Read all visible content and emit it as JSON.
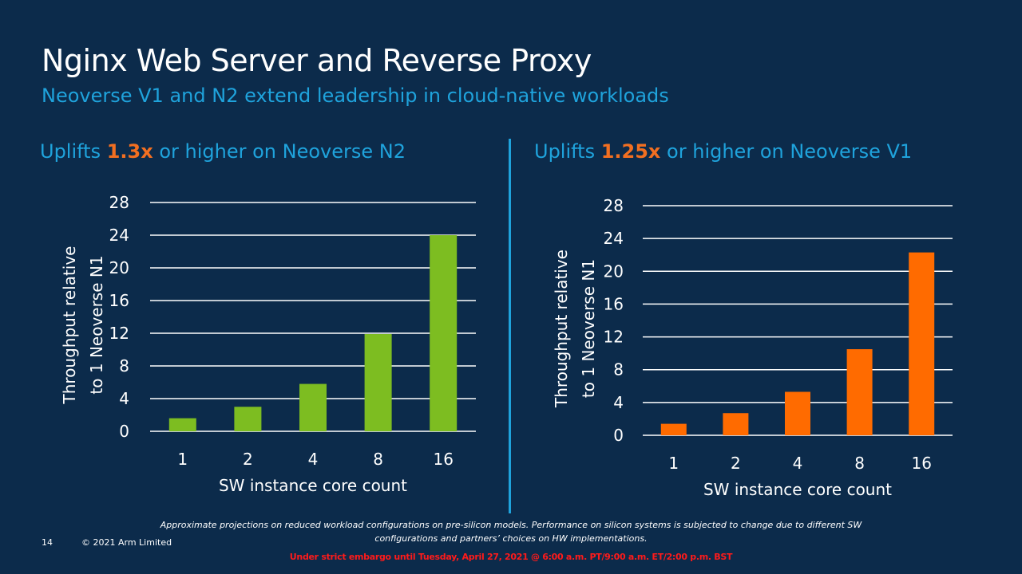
{
  "title": "Nginx Web Server and Reverse Proxy",
  "subtitle": "Neoverse V1 and N2 extend leadership in cloud-native workloads",
  "panels": [
    {
      "heading_pre": "Uplifts ",
      "heading_value": "1.3x",
      "heading_post": " or higher on Neoverse N2"
    },
    {
      "heading_pre": "Uplifts ",
      "heading_value": "1.25x",
      "heading_post": " or higher on Neoverse V1"
    }
  ],
  "footnote": "Approximate projections on reduced workload configurations on pre-silicon models. Performance on silicon systems is subjected to change due to different SW configurations and partners’ choices on HW implementations.",
  "page_number": "14",
  "copyright": "© 2021 Arm Limited",
  "embargo": "Under strict embargo until Tuesday, April 27, 2021 @ 6:00 a.m. PT/9:00 a.m. ET/2:00 p.m. BST",
  "colors": {
    "background": "#0c2b4b",
    "heading": "#1fa3dc",
    "highlight": "#f26f21",
    "n2_bar": "#7dbd21",
    "v1_bar": "#ff6b00",
    "embargo": "#ff1a1a"
  },
  "chart_data": [
    {
      "type": "bar",
      "categories": [
        "1",
        "2",
        "4",
        "8",
        "16"
      ],
      "series": [
        {
          "values": [
            1.6,
            3.0,
            5.8,
            11.9,
            24.0
          ]
        }
      ],
      "color": "#7dbd21",
      "ylabel": "Throughput relative to 1 Neoverse N1",
      "xlabel": "SW instance core count",
      "ylim": [
        0,
        28
      ],
      "yticks": [
        0,
        4,
        8,
        12,
        16,
        20,
        24,
        28
      ],
      "grid": true
    },
    {
      "type": "bar",
      "categories": [
        "1",
        "2",
        "4",
        "8",
        "16"
      ],
      "series": [
        {
          "values": [
            1.4,
            2.7,
            5.3,
            10.5,
            22.3
          ]
        }
      ],
      "color": "#ff6b00",
      "ylabel": "Throughput relative to 1 Neoverse N1",
      "xlabel": "SW instance core count",
      "ylim": [
        0,
        28
      ],
      "yticks": [
        0,
        4,
        8,
        12,
        16,
        20,
        24,
        28
      ],
      "grid": true
    }
  ]
}
